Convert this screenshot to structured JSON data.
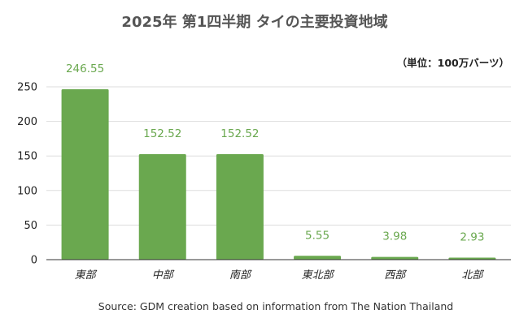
{
  "chart_data": {
    "type": "bar",
    "title": "2025年 第1四半期 タイの主要投資地域",
    "unit_note": "（単位：100万バーツ）",
    "categories": [
      "東部",
      "中部",
      "南部",
      "東北部",
      "西部",
      "北部"
    ],
    "values": [
      246.55,
      152.52,
      152.52,
      5.55,
      3.98,
      2.93
    ],
    "value_labels": [
      "246.55",
      "152.52",
      "152.52",
      "5.55",
      "3.98",
      "2.93"
    ],
    "ylim": [
      0,
      250
    ],
    "yticks": [
      "0",
      "50",
      "100",
      "150",
      "200",
      "250"
    ],
    "grid": true,
    "legend": "none",
    "bar_color": "#6aa84f",
    "source": "Source: GDM creation based on information from The Nation Thailand"
  }
}
